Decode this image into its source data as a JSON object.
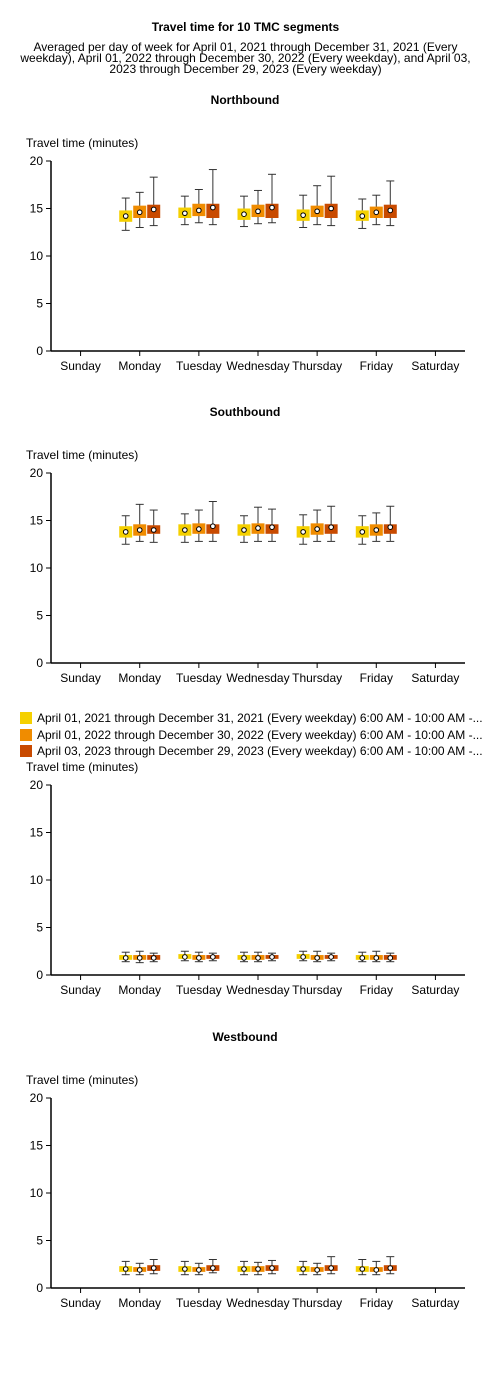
{
  "title": "Travel time for 10 TMC segments",
  "subtitle": "Averaged per day of week for April 01, 2021 through December 31, 2021 (Every weekday), April 01, 2022 through December 30, 2022 (Every weekday), and April 03, 2023 through December 29, 2023 (Every weekday)",
  "legend": [
    {
      "label": "April 01, 2021 through December 31, 2021 (Every weekday) 6:00 AM - 10:00 AM -...",
      "color": "#f5d000"
    },
    {
      "label": "April 01, 2022 through December 30, 2022 (Every weekday) 6:00 AM - 10:00 AM -...",
      "color": "#f08c00"
    },
    {
      "label": "April 03, 2023 through December 29, 2023 (Every weekday) 6:00 AM - 10:00 AM -...",
      "color": "#c84a00"
    }
  ],
  "chart_data": [
    {
      "type": "box",
      "title": "Northbound",
      "ylabel": "Travel time (minutes)",
      "ylim": [
        0,
        20
      ],
      "yticks": [
        "0",
        "5",
        "10",
        "15",
        "20"
      ],
      "categories": [
        "Sunday",
        "Monday",
        "Tuesday",
        "Wednesday",
        "Thursday",
        "Friday",
        "Saturday"
      ],
      "series": [
        {
          "values": [
            null,
            {
              "min": 12.7,
              "q1": 13.6,
              "median": 14.2,
              "q3": 14.8,
              "max": 16.1
            },
            {
              "min": 13.3,
              "q1": 14.0,
              "median": 14.5,
              "q3": 15.1,
              "max": 16.3
            },
            {
              "min": 13.1,
              "q1": 13.8,
              "median": 14.4,
              "q3": 15.0,
              "max": 16.3
            },
            {
              "min": 13.0,
              "q1": 13.7,
              "median": 14.3,
              "q3": 14.9,
              "max": 16.4
            },
            {
              "min": 12.9,
              "q1": 13.7,
              "median": 14.2,
              "q3": 14.8,
              "max": 16.0
            },
            null
          ]
        },
        {
          "values": [
            null,
            {
              "min": 13.0,
              "q1": 14.0,
              "median": 14.6,
              "q3": 15.3,
              "max": 16.7
            },
            {
              "min": 13.5,
              "q1": 14.2,
              "median": 14.8,
              "q3": 15.5,
              "max": 17.0
            },
            {
              "min": 13.4,
              "q1": 14.1,
              "median": 14.7,
              "q3": 15.4,
              "max": 16.9
            },
            {
              "min": 13.3,
              "q1": 14.1,
              "median": 14.7,
              "q3": 15.3,
              "max": 17.4
            },
            {
              "min": 13.3,
              "q1": 14.0,
              "median": 14.6,
              "q3": 15.2,
              "max": 16.4
            },
            null
          ]
        },
        {
          "values": [
            null,
            {
              "min": 13.2,
              "q1": 14.0,
              "median": 14.9,
              "q3": 15.4,
              "max": 18.3
            },
            {
              "min": 13.3,
              "q1": 14.0,
              "median": 15.1,
              "q3": 15.5,
              "max": 19.1
            },
            {
              "min": 13.5,
              "q1": 14.0,
              "median": 15.1,
              "q3": 15.5,
              "max": 18.6
            },
            {
              "min": 13.2,
              "q1": 14.0,
              "median": 15.0,
              "q3": 15.5,
              "max": 18.4
            },
            {
              "min": 13.2,
              "q1": 14.0,
              "median": 14.8,
              "q3": 15.4,
              "max": 17.9
            },
            null
          ]
        }
      ]
    },
    {
      "type": "box",
      "title": "Southbound",
      "ylabel": "Travel time (minutes)",
      "ylim": [
        0,
        20
      ],
      "yticks": [
        "0",
        "5",
        "10",
        "15",
        "20"
      ],
      "categories": [
        "Sunday",
        "Monday",
        "Tuesday",
        "Wednesday",
        "Thursday",
        "Friday",
        "Saturday"
      ],
      "series": [
        {
          "values": [
            null,
            {
              "min": 12.5,
              "q1": 13.2,
              "median": 13.8,
              "q3": 14.4,
              "max": 15.5
            },
            {
              "min": 12.7,
              "q1": 13.4,
              "median": 14.0,
              "q3": 14.6,
              "max": 15.7
            },
            {
              "min": 12.7,
              "q1": 13.4,
              "median": 14.0,
              "q3": 14.6,
              "max": 15.5
            },
            {
              "min": 12.5,
              "q1": 13.2,
              "median": 13.8,
              "q3": 14.4,
              "max": 15.6
            },
            {
              "min": 12.5,
              "q1": 13.2,
              "median": 13.8,
              "q3": 14.4,
              "max": 15.5
            },
            null
          ]
        },
        {
          "values": [
            null,
            {
              "min": 12.8,
              "q1": 13.4,
              "median": 14.0,
              "q3": 14.6,
              "max": 16.7
            },
            {
              "min": 12.8,
              "q1": 13.6,
              "median": 14.1,
              "q3": 14.7,
              "max": 16.1
            },
            {
              "min": 12.8,
              "q1": 13.6,
              "median": 14.2,
              "q3": 14.7,
              "max": 16.4
            },
            {
              "min": 12.8,
              "q1": 13.5,
              "median": 14.1,
              "q3": 14.7,
              "max": 16.1
            },
            {
              "min": 12.8,
              "q1": 13.4,
              "median": 14.0,
              "q3": 14.6,
              "max": 15.8
            },
            null
          ]
        },
        {
          "values": [
            null,
            {
              "min": 12.7,
              "q1": 13.6,
              "median": 14.0,
              "q3": 14.5,
              "max": 16.1
            },
            {
              "min": 12.8,
              "q1": 13.6,
              "median": 14.4,
              "q3": 14.6,
              "max": 17.0
            },
            {
              "min": 12.8,
              "q1": 13.6,
              "median": 14.3,
              "q3": 14.6,
              "max": 16.2
            },
            {
              "min": 12.8,
              "q1": 13.6,
              "median": 14.3,
              "q3": 14.6,
              "max": 16.5
            },
            {
              "min": 12.8,
              "q1": 13.6,
              "median": 14.3,
              "q3": 14.6,
              "max": 16.5
            },
            null
          ]
        }
      ]
    },
    {
      "type": "box",
      "title": "",
      "ylabel": "Travel time (minutes)",
      "ylim": [
        0,
        20
      ],
      "yticks": [
        "0",
        "5",
        "10",
        "15",
        "20"
      ],
      "categories": [
        "Sunday",
        "Monday",
        "Tuesday",
        "Wednesday",
        "Thursday",
        "Friday",
        "Saturday"
      ],
      "series": [
        {
          "values": [
            null,
            {
              "min": 1.4,
              "q1": 1.6,
              "median": 1.8,
              "q3": 2.1,
              "max": 2.4
            },
            {
              "min": 1.5,
              "q1": 1.7,
              "median": 1.9,
              "q3": 2.2,
              "max": 2.5
            },
            {
              "min": 1.4,
              "q1": 1.6,
              "median": 1.8,
              "q3": 2.1,
              "max": 2.4
            },
            {
              "min": 1.5,
              "q1": 1.7,
              "median": 1.9,
              "q3": 2.2,
              "max": 2.5
            },
            {
              "min": 1.4,
              "q1": 1.6,
              "median": 1.8,
              "q3": 2.1,
              "max": 2.4
            },
            null
          ]
        },
        {
          "values": [
            null,
            {
              "min": 1.3,
              "q1": 1.6,
              "median": 1.8,
              "q3": 2.1,
              "max": 2.5
            },
            {
              "min": 1.4,
              "q1": 1.6,
              "median": 1.8,
              "q3": 2.1,
              "max": 2.4
            },
            {
              "min": 1.4,
              "q1": 1.6,
              "median": 1.8,
              "q3": 2.1,
              "max": 2.4
            },
            {
              "min": 1.4,
              "q1": 1.6,
              "median": 1.8,
              "q3": 2.1,
              "max": 2.5
            },
            {
              "min": 1.4,
              "q1": 1.6,
              "median": 1.8,
              "q3": 2.1,
              "max": 2.5
            },
            null
          ]
        },
        {
          "values": [
            null,
            {
              "min": 1.4,
              "q1": 1.6,
              "median": 1.8,
              "q3": 2.1,
              "max": 2.3
            },
            {
              "min": 1.5,
              "q1": 1.7,
              "median": 1.9,
              "q3": 2.1,
              "max": 2.3
            },
            {
              "min": 1.5,
              "q1": 1.7,
              "median": 1.9,
              "q3": 2.1,
              "max": 2.3
            },
            {
              "min": 1.5,
              "q1": 1.7,
              "median": 1.9,
              "q3": 2.1,
              "max": 2.3
            },
            {
              "min": 1.4,
              "q1": 1.6,
              "median": 1.8,
              "q3": 2.1,
              "max": 2.3
            },
            null
          ]
        }
      ]
    },
    {
      "type": "box",
      "title": "Westbound",
      "ylabel": "Travel time (minutes)",
      "ylim": [
        0,
        20
      ],
      "yticks": [
        "0",
        "5",
        "10",
        "15",
        "20"
      ],
      "categories": [
        "Sunday",
        "Monday",
        "Tuesday",
        "Wednesday",
        "Thursday",
        "Friday",
        "Saturday"
      ],
      "series": [
        {
          "values": [
            null,
            {
              "min": 1.4,
              "q1": 1.7,
              "median": 2.0,
              "q3": 2.3,
              "max": 2.8
            },
            {
              "min": 1.4,
              "q1": 1.7,
              "median": 2.0,
              "q3": 2.3,
              "max": 2.8
            },
            {
              "min": 1.4,
              "q1": 1.7,
              "median": 2.0,
              "q3": 2.3,
              "max": 2.8
            },
            {
              "min": 1.4,
              "q1": 1.7,
              "median": 2.0,
              "q3": 2.3,
              "max": 2.8
            },
            {
              "min": 1.4,
              "q1": 1.7,
              "median": 2.0,
              "q3": 2.3,
              "max": 3.0
            },
            null
          ]
        },
        {
          "values": [
            null,
            {
              "min": 1.4,
              "q1": 1.7,
              "median": 1.9,
              "q3": 2.2,
              "max": 2.6
            },
            {
              "min": 1.4,
              "q1": 1.7,
              "median": 1.9,
              "q3": 2.2,
              "max": 2.6
            },
            {
              "min": 1.4,
              "q1": 1.7,
              "median": 2.0,
              "q3": 2.3,
              "max": 2.7
            },
            {
              "min": 1.4,
              "q1": 1.7,
              "median": 1.9,
              "q3": 2.2,
              "max": 2.6
            },
            {
              "min": 1.4,
              "q1": 1.7,
              "median": 1.9,
              "q3": 2.2,
              "max": 2.8
            },
            null
          ]
        },
        {
          "values": [
            null,
            {
              "min": 1.5,
              "q1": 1.8,
              "median": 2.1,
              "q3": 2.4,
              "max": 3.0
            },
            {
              "min": 1.6,
              "q1": 1.8,
              "median": 2.1,
              "q3": 2.4,
              "max": 3.0
            },
            {
              "min": 1.5,
              "q1": 1.8,
              "median": 2.1,
              "q3": 2.4,
              "max": 2.9
            },
            {
              "min": 1.5,
              "q1": 1.8,
              "median": 2.1,
              "q3": 2.4,
              "max": 3.3
            },
            {
              "min": 1.5,
              "q1": 1.8,
              "median": 2.1,
              "q3": 2.4,
              "max": 3.3
            },
            null
          ]
        }
      ]
    }
  ]
}
